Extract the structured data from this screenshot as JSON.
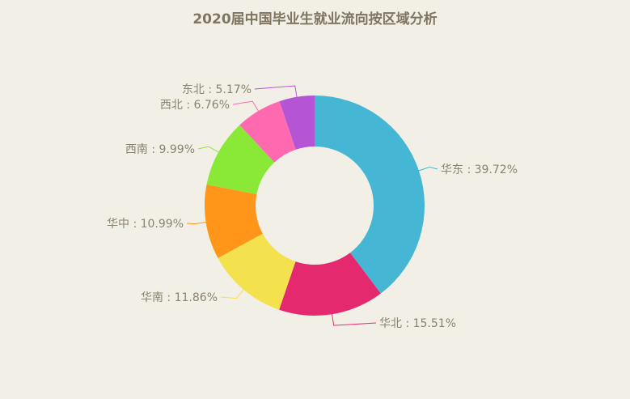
{
  "chart_data": {
    "type": "pie",
    "variant": "donut",
    "title": "2020届中国毕业生就业流向按区域分析",
    "categories": [
      "华东",
      "华北",
      "华南",
      "华中",
      "西南",
      "西北",
      "东北"
    ],
    "values": [
      39.72,
      15.51,
      11.86,
      10.99,
      9.99,
      6.76,
      5.17
    ],
    "unit": "%",
    "colors": [
      "#45b6d3",
      "#e5296e",
      "#f4e14e",
      "#ff9619",
      "#8ae836",
      "#ff69b0",
      "#b654d6"
    ],
    "labels": [
      "华东 : 39.72%",
      "华北 : 15.51%",
      "华南 : 11.86%",
      "华中 : 10.99%",
      "西南 : 9.99%",
      "西北 : 6.76%",
      "东北 : 5.17%"
    ],
    "legend": "none",
    "start_angle": "12 o'clock, clockwise"
  },
  "colors": {
    "background": "#f2f0e6",
    "title": "#7f7461",
    "label": "#8a8270"
  }
}
